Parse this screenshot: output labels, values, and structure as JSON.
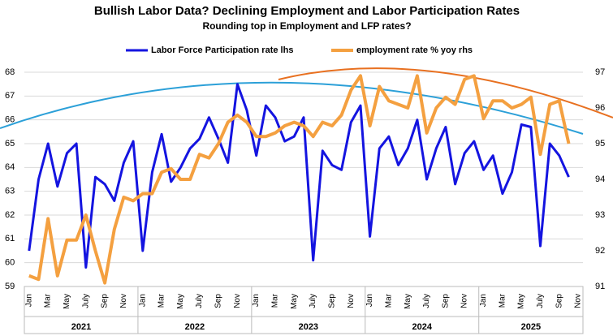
{
  "chart_data": {
    "type": "line",
    "title": "Bullish Labor Data? Declining Employment and Labor Participation Rates",
    "subtitle": "Rounding top in Employment and LFP rates?",
    "categories": [
      "Jan",
      null,
      "Mar",
      null,
      "May",
      null,
      "July",
      null,
      "Sep",
      null,
      "Nov",
      null,
      "Jan",
      null,
      "Mar",
      null,
      "May",
      null,
      "July",
      null,
      "Sep",
      null,
      "Nov",
      null,
      "Jan",
      null,
      "Mar",
      null,
      "May",
      null,
      "July",
      null,
      "Sep",
      null,
      "Nov",
      null,
      "Jan",
      null,
      "Mar",
      null,
      "May",
      null,
      "July",
      null,
      "Sep",
      null,
      "Nov",
      null,
      "Jan",
      null,
      "Mar",
      null,
      "May",
      null,
      "July",
      null,
      "Sep",
      null,
      "Nov"
    ],
    "years": [
      "2021",
      "2022",
      "2023",
      "2024",
      "2025"
    ],
    "series": [
      {
        "name": "Labor Force Participation rate lhs",
        "color": "#1414e0",
        "axis": "y",
        "values": [
          60.5,
          63.5,
          65.0,
          63.2,
          64.6,
          65.0,
          59.8,
          63.6,
          63.3,
          62.6,
          64.2,
          65.1,
          60.5,
          63.8,
          65.4,
          63.4,
          64.0,
          64.8,
          65.2,
          66.1,
          65.2,
          64.2,
          67.5,
          66.4,
          64.5,
          66.6,
          66.1,
          65.1,
          65.3,
          66.1,
          60.1,
          64.7,
          64.1,
          63.9,
          65.9,
          66.6,
          61.1,
          64.8,
          65.3,
          64.1,
          64.8,
          66.0,
          63.5,
          64.8,
          65.7,
          63.3,
          64.6,
          65.1,
          63.9,
          64.5,
          62.9,
          63.8,
          65.8,
          65.7,
          60.7,
          65.0,
          64.5,
          63.6,
          null
        ]
      },
      {
        "name": "employment rate % yoy rhs",
        "color": "#f4a040",
        "axis": "y2",
        "values": [
          91.3,
          91.2,
          92.9,
          91.3,
          92.3,
          92.3,
          93.0,
          92.0,
          91.1,
          92.6,
          93.5,
          93.4,
          93.6,
          93.6,
          94.2,
          94.3,
          94.0,
          94.0,
          94.7,
          94.6,
          95.0,
          95.6,
          95.8,
          95.6,
          95.2,
          95.2,
          95.3,
          95.5,
          95.6,
          95.5,
          95.2,
          95.6,
          95.5,
          95.8,
          96.5,
          96.9,
          95.5,
          96.6,
          96.2,
          96.1,
          96.0,
          96.9,
          95.3,
          96.0,
          96.3,
          96.1,
          96.8,
          96.9,
          95.7,
          96.2,
          96.2,
          96.0,
          96.1,
          96.3,
          94.7,
          96.1,
          96.2,
          95.0,
          null
        ]
      }
    ],
    "ylim": [
      59,
      68
    ],
    "yticks": [
      59,
      60,
      61,
      62,
      63,
      64,
      65,
      66,
      67,
      68
    ],
    "y2lim": [
      91,
      97
    ],
    "y2ticks": [
      91,
      92,
      93,
      94,
      95,
      96,
      97
    ],
    "grid": true
  }
}
